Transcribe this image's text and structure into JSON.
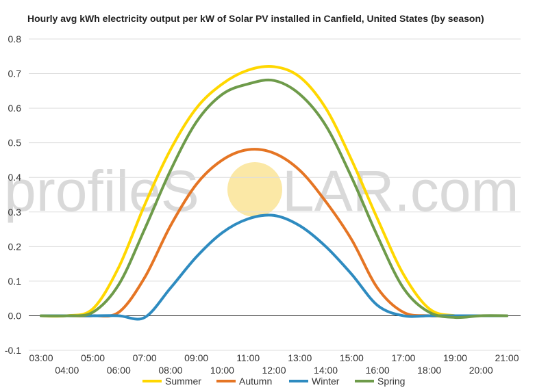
{
  "watermark": {
    "text_left": "profileS",
    "text_right": "LAR.com",
    "sun_color": "#fbe8a6"
  },
  "chart_data": {
    "type": "line",
    "title": "Hourly avg kWh electricity output per kW of Solar PV installed in Canfield, United States (by season)",
    "xlabel": "",
    "ylabel": "",
    "x": [
      "03:00",
      "04:00",
      "05:00",
      "06:00",
      "07:00",
      "08:00",
      "09:00",
      "10:00",
      "11:00",
      "12:00",
      "13:00",
      "14:00",
      "15:00",
      "16:00",
      "17:00",
      "18:00",
      "19:00",
      "20:00",
      "21:00"
    ],
    "ylim": [
      -0.1,
      0.8
    ],
    "yticks": [
      "-0.1",
      "0.0",
      "0.1",
      "0.2",
      "0.3",
      "0.4",
      "0.5",
      "0.6",
      "0.7",
      "0.8"
    ],
    "grid": true,
    "legend_position": "bottom",
    "series": [
      {
        "name": "Summer",
        "color": "#ffd700",
        "values": [
          0.0,
          0.0,
          0.02,
          0.14,
          0.32,
          0.48,
          0.6,
          0.67,
          0.71,
          0.72,
          0.69,
          0.6,
          0.45,
          0.28,
          0.12,
          0.02,
          0.0,
          0.0,
          0.0
        ]
      },
      {
        "name": "Autumn",
        "color": "#e57524",
        "values": [
          0.0,
          0.0,
          0.0,
          0.01,
          0.11,
          0.26,
          0.38,
          0.45,
          0.48,
          0.47,
          0.42,
          0.33,
          0.22,
          0.08,
          0.01,
          0.0,
          0.0,
          0.0,
          0.0
        ]
      },
      {
        "name": "Winter",
        "color": "#2e8bc0",
        "values": [
          0.0,
          0.0,
          0.0,
          0.0,
          -0.005,
          0.08,
          0.17,
          0.24,
          0.28,
          0.29,
          0.26,
          0.2,
          0.12,
          0.03,
          0.0,
          0.0,
          0.0,
          0.0,
          0.0
        ]
      },
      {
        "name": "Spring",
        "color": "#6e9b4a",
        "values": [
          0.0,
          0.0,
          0.01,
          0.09,
          0.25,
          0.42,
          0.56,
          0.64,
          0.67,
          0.68,
          0.64,
          0.55,
          0.4,
          0.23,
          0.08,
          0.01,
          -0.005,
          0.0,
          0.0
        ]
      }
    ]
  }
}
